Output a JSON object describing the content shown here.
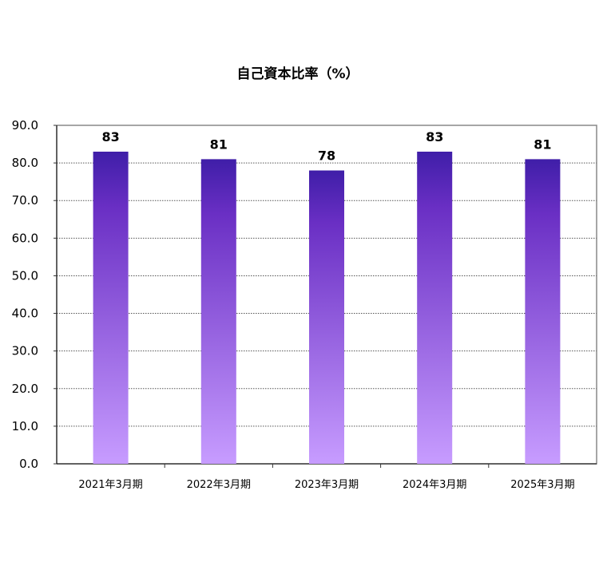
{
  "chart_data": {
    "type": "bar",
    "title": "自己資本比率（%）",
    "categories": [
      "2021年3月期",
      "2022年3月期",
      "2023年3月期",
      "2024年3月期",
      "2025年3月期"
    ],
    "values": [
      83,
      81,
      78,
      83,
      81
    ],
    "data_labels": [
      "83",
      "81",
      "78",
      "83",
      "81"
    ],
    "ylim": [
      0,
      90
    ],
    "yticks": [
      "0.0",
      "10.0",
      "20.0",
      "30.0",
      "40.0",
      "50.0",
      "60.0",
      "70.0",
      "80.0",
      "90.0"
    ],
    "xlabel": "",
    "ylabel": "",
    "grid": true,
    "legend": "none",
    "colors": {
      "bar_top": "#3f1ea8",
      "bar_mid": "#6a2fc4",
      "bar_bottom": "#c79cff",
      "grid": "#555555",
      "border": "#888888"
    }
  }
}
